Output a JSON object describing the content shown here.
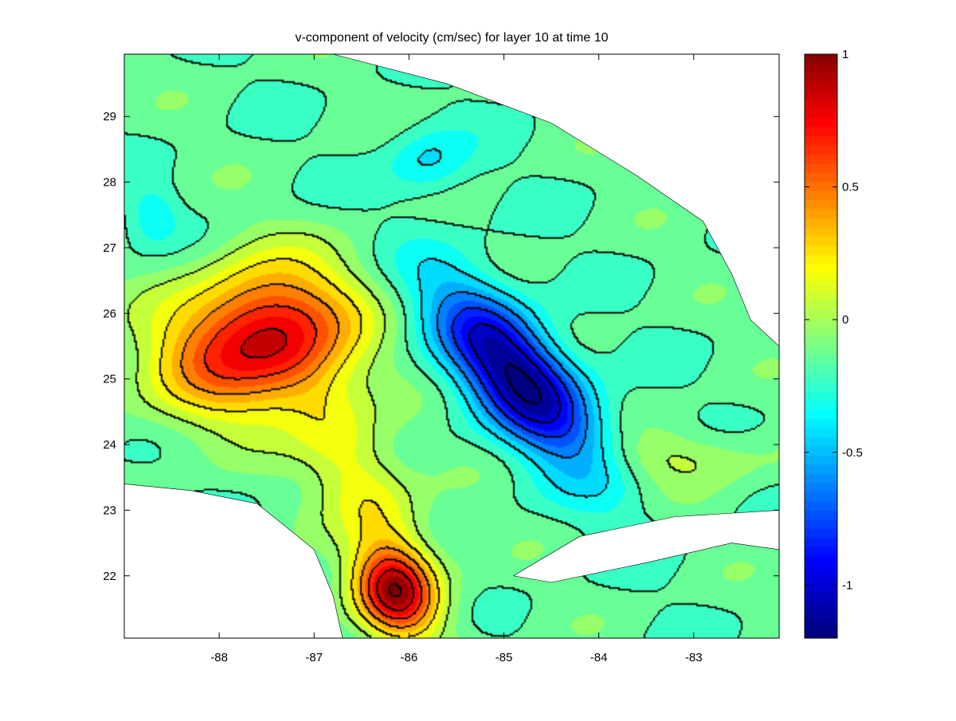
{
  "chart_data": {
    "type": "heatmap",
    "subtype": "filled-contour",
    "title": "v-component of velocity (cm/sec) for layer 10 at time 10",
    "xlabel": "",
    "ylabel": "",
    "xlim": [
      -89,
      -82.1
    ],
    "ylim": [
      21.05,
      29.95
    ],
    "xticks": [
      "-88",
      "-87",
      "-86",
      "-85",
      "-84",
      "-83"
    ],
    "yticks": [
      "22",
      "23",
      "24",
      "25",
      "26",
      "27",
      "28",
      "29"
    ],
    "colorbar": {
      "range": [
        -1.2,
        1.0
      ],
      "ticks": [
        "1",
        "0.5",
        "0",
        "-0.5",
        "-1"
      ],
      "colormap": "jet"
    },
    "background_value": -0.18,
    "features": [
      {
        "name": "northern positive lobe",
        "cx": -87.6,
        "cy": 25.6,
        "rx": 1.05,
        "ry": 1.35,
        "rot": -35,
        "amp": 0.98
      },
      {
        "name": "southern positive lobe",
        "cx": -86.15,
        "cy": 21.75,
        "rx": 0.45,
        "ry": 0.75,
        "rot": 10,
        "amp": 0.98
      },
      {
        "name": "positive band",
        "cx": -86.5,
        "cy": 23.4,
        "rx": 0.55,
        "ry": 2.3,
        "rot": 20,
        "amp": 0.38
      },
      {
        "name": "negative core",
        "cx": -84.85,
        "cy": 25.05,
        "rx": 0.6,
        "ry": 1.75,
        "rot": 28,
        "amp": -1.05
      },
      {
        "name": "cyan patch north",
        "cx": -85.8,
        "cy": 28.3,
        "rx": 0.5,
        "ry": 0.6,
        "rot": 0,
        "amp": -0.24
      },
      {
        "name": "cyan patch west",
        "cx": -88.7,
        "cy": 27.5,
        "rx": 0.3,
        "ry": 0.5,
        "rot": 0,
        "amp": -0.18
      },
      {
        "name": "green band east",
        "cx": -83.2,
        "cy": 23.8,
        "rx": 1.2,
        "ry": 0.5,
        "rot": 0,
        "amp": 0.2
      }
    ],
    "land_masks": [
      "Florida peninsula (east)",
      "Yucatan peninsula (southwest)",
      "Cuba (southeast)"
    ],
    "colors": {
      "contour_line": "#000000",
      "land": "#ffffff",
      "frame": "#000000"
    }
  }
}
